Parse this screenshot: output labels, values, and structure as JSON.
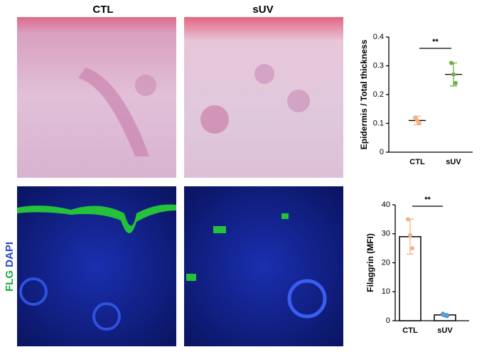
{
  "column_labels": [
    "CTL",
    "sUV"
  ],
  "row_label": [
    "FLG",
    "DAPI"
  ],
  "chart_data": [
    {
      "type": "dot",
      "y_label": "Epidermis / Total thickness",
      "categories": [
        "CTL",
        "sUV"
      ],
      "points": [
        [
          0.12,
          0.11,
          0.1
        ],
        [
          0.31,
          0.27,
          0.24
        ]
      ],
      "means": [
        0.11,
        0.27
      ],
      "errors": [
        0.015,
        0.04
      ],
      "point_colors": [
        "#f4b183",
        "#70ad47"
      ],
      "annotation": "**",
      "ylim": [
        0,
        0.4
      ],
      "yticks": [
        0,
        0.1,
        0.2,
        0.3,
        0.4
      ]
    },
    {
      "type": "bar",
      "y_label": "Filaggrin (MFI)",
      "categories": [
        "CTL",
        "sUV"
      ],
      "values": [
        29,
        2
      ],
      "errors": [
        6,
        0.5
      ],
      "points": [
        [
          35,
          29.5,
          25
        ],
        [
          2.4,
          1.8,
          1.6
        ]
      ],
      "point_colors": [
        "#f4b183",
        "#5b9bd5"
      ],
      "annotation": "**",
      "ylim": [
        0,
        40
      ],
      "yticks": [
        0,
        10,
        20,
        30,
        40
      ]
    }
  ]
}
